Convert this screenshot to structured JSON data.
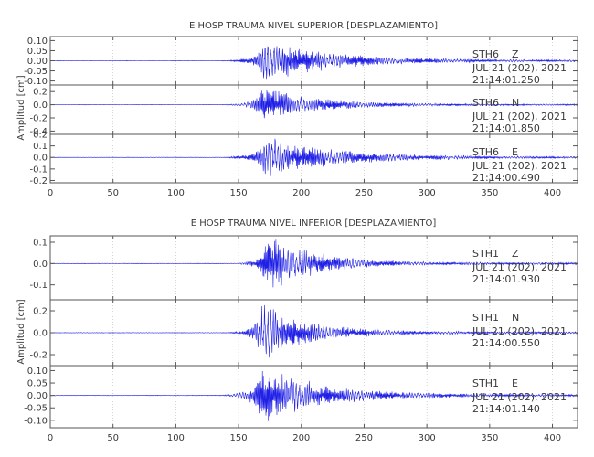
{
  "chart_data": [
    {
      "type": "line",
      "title": "E HOSP TRAUMA NIVEL SUPERIOR [DESPLAZAMIENTO]",
      "ylabel": "Amplitud [cm]",
      "xlabel": "",
      "xlim": [
        0,
        420
      ],
      "xticks": [
        0,
        50,
        100,
        150,
        200,
        250,
        300,
        350,
        400
      ],
      "grid": true,
      "line_color": "#1f1fe6",
      "traces": [
        {
          "station": "STH6",
          "component": "Z",
          "date": "JUL 21 (202), 2021",
          "time": "21:14:01.250",
          "ylim": [
            -0.12,
            0.12
          ],
          "yticks": [
            -0.1,
            -0.05,
            0.0,
            0.05,
            0.1
          ],
          "ytick_labels": [
            "-0.10",
            "-0.05",
            "0.00",
            "0.05",
            "0.10"
          ],
          "onset": 128,
          "peak_time": 172,
          "peak_amp": 0.115,
          "decay": 50
        },
        {
          "station": "STH6",
          "component": "N",
          "date": "JUL 21 (202), 2021",
          "time": "21:14:01.850",
          "ylim": [
            -0.45,
            0.3
          ],
          "yticks": [
            -0.4,
            -0.2,
            0.0,
            0.2
          ],
          "ytick_labels": [
            "-0.4",
            "-0.2",
            "0.0",
            "0.2"
          ],
          "onset": 130,
          "peak_time": 170,
          "peak_amp": 0.3,
          "decay": 40
        },
        {
          "station": "STH6",
          "component": "E",
          "date": "JUL 21 (202), 2021",
          "time": "21:14:00.490",
          "ylim": [
            -0.22,
            0.2
          ],
          "yticks": [
            -0.2,
            -0.1,
            0.0,
            0.1,
            0.2
          ],
          "ytick_labels": [
            "-0.2",
            "-0.1",
            "0.0",
            "0.1",
            "0.2"
          ],
          "onset": 125,
          "peak_time": 172,
          "peak_amp": 0.18,
          "decay": 55
        }
      ]
    },
    {
      "type": "line",
      "title": "E HOSP TRAUMA NIVEL INFERIOR [DESPLAZAMIENTO]",
      "ylabel": "Amplitud [cm]",
      "xlabel": "",
      "xlim": [
        0,
        420
      ],
      "xticks": [
        0,
        50,
        100,
        150,
        200,
        250,
        300,
        350,
        400
      ],
      "grid": true,
      "line_color": "#1f1fe6",
      "traces": [
        {
          "station": "STH1",
          "component": "Z",
          "date": "JUL 21 (202), 2021",
          "time": "21:14:01.930",
          "ylim": [
            -0.17,
            0.13
          ],
          "yticks": [
            -0.1,
            0.0,
            0.1
          ],
          "ytick_labels": [
            "-0.1",
            "0.0",
            "0.1"
          ],
          "onset": 140,
          "peak_time": 175,
          "peak_amp": 0.14,
          "decay": 35
        },
        {
          "station": "STH1",
          "component": "N",
          "date": "JUL 21 (202), 2021",
          "time": "21:14:00.550",
          "ylim": [
            -0.3,
            0.3
          ],
          "yticks": [
            -0.2,
            0.0,
            0.2
          ],
          "ytick_labels": [
            "-0.2",
            "0.0",
            "0.2"
          ],
          "onset": 135,
          "peak_time": 170,
          "peak_amp": 0.28,
          "decay": 35
        },
        {
          "station": "STH1",
          "component": "E",
          "date": "JUL 21 (202), 2021",
          "time": "21:14:01.140",
          "ylim": [
            -0.13,
            0.12
          ],
          "yticks": [
            -0.1,
            -0.05,
            0.0,
            0.05,
            0.1
          ],
          "ytick_labels": [
            "-0.10",
            "-0.05",
            "0.00",
            "0.05",
            "0.10"
          ],
          "onset": 125,
          "peak_time": 170,
          "peak_amp": 0.12,
          "decay": 45
        }
      ]
    }
  ]
}
